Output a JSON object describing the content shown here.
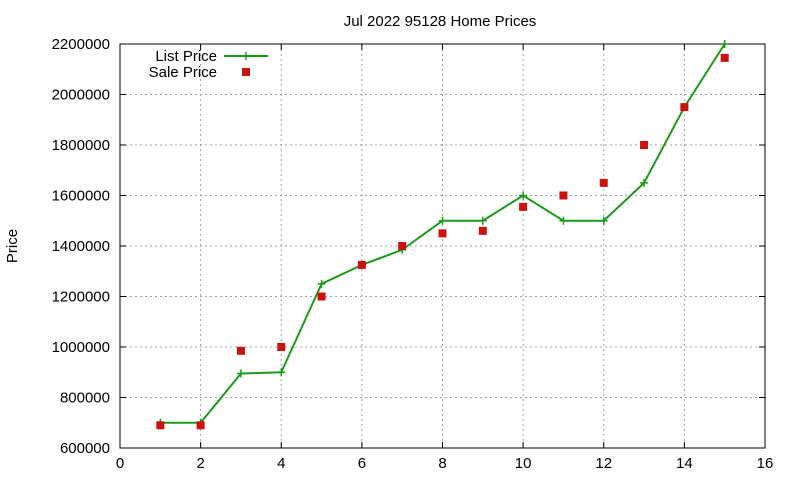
{
  "chart_data": {
    "type": "line",
    "title": "Jul 2022 95128 Home Prices",
    "xlabel": "",
    "ylabel": "Price",
    "xlim": [
      0,
      16
    ],
    "ylim": [
      600000,
      2200000
    ],
    "x_ticks": [
      0,
      2,
      4,
      6,
      8,
      10,
      12,
      14,
      16
    ],
    "y_ticks": [
      600000,
      800000,
      1000000,
      1200000,
      1400000,
      1600000,
      1800000,
      2000000,
      2200000
    ],
    "x_tick_labels": [
      "0",
      "2",
      "4",
      "6",
      "8",
      "10",
      "12",
      "14",
      "16"
    ],
    "y_tick_labels": [
      "600000",
      "800000",
      "1000000",
      "1200000",
      "1400000",
      "1600000",
      "1800000",
      "2000000",
      "2200000"
    ],
    "grid": true,
    "legend_position": "top-left",
    "series": [
      {
        "name": "List Price",
        "style": "line-with-plus-markers",
        "color": "#1a9a1a",
        "x": [
          1,
          2,
          3,
          4,
          5,
          6,
          7,
          8,
          9,
          10,
          11,
          12,
          13,
          14,
          15
        ],
        "values": [
          700000,
          700000,
          895000,
          900000,
          1250000,
          1325000,
          1385000,
          1500000,
          1500000,
          1600000,
          1500000,
          1500000,
          1650000,
          1950000,
          2200000
        ]
      },
      {
        "name": "Sale Price",
        "style": "square-markers",
        "color": "#cc1111",
        "x": [
          1,
          2,
          3,
          4,
          5,
          6,
          7,
          8,
          9,
          10,
          11,
          12,
          13,
          14,
          15
        ],
        "values": [
          690000,
          690000,
          985000,
          1000000,
          1200000,
          1325000,
          1400000,
          1450000,
          1460000,
          1555000,
          1600000,
          1650000,
          1800000,
          1950000,
          2145000
        ]
      }
    ]
  }
}
